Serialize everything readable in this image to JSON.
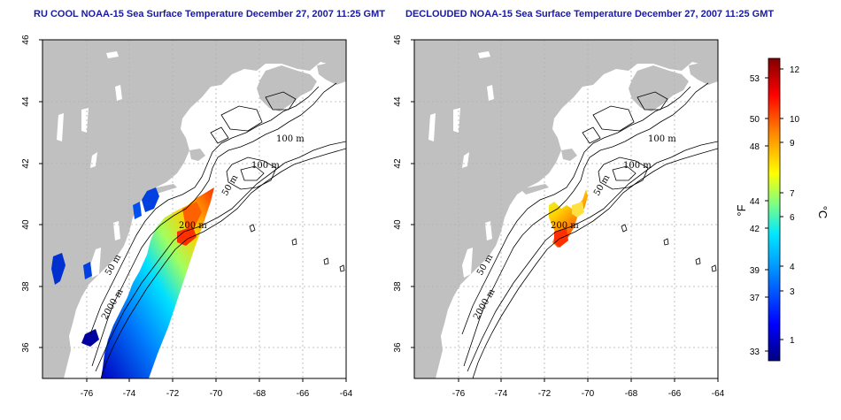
{
  "maps": [
    {
      "id": "left",
      "title": "RU COOL NOAA-15 Sea Surface Temperature December 27, 2007 11:25 GMT",
      "contour_labels": [
        "100 m",
        "100 m",
        "50 m",
        "200 m",
        "50 m",
        "2000 m"
      ]
    },
    {
      "id": "right",
      "title": "DECLOUDED NOAA-15 Sea Surface Temperature December 27, 2007 11:25 GMT",
      "contour_labels": [
        "100 m",
        "100 m",
        "50 m",
        "200 m",
        "50 m",
        "2000 m"
      ]
    }
  ],
  "axes": {
    "lon_ticks": [
      "-76",
      "-74",
      "-72",
      "-70",
      "-68",
      "-66",
      "-64"
    ],
    "lat_ticks": [
      "46",
      "44",
      "42",
      "40",
      "38",
      "36"
    ],
    "lon_range": [
      -77.2,
      -62.8
    ],
    "lat_range": [
      35.0,
      46.0
    ]
  },
  "colorbar": {
    "fahrenheit_ticks": [
      "53",
      "50",
      "48",
      "44",
      "42",
      "39",
      "37",
      "33"
    ],
    "celsius_ticks": [
      "12",
      "10",
      "9",
      "7",
      "6",
      "4",
      "3",
      "1"
    ],
    "fahrenheit_label": "°F",
    "celsius_label": "°C",
    "range_c": [
      0,
      13
    ]
  },
  "colors": {
    "land": "#c0c0c0",
    "ocean": "#ffffff",
    "title": "#1a1aa0",
    "grid": "#b0b0b0"
  }
}
